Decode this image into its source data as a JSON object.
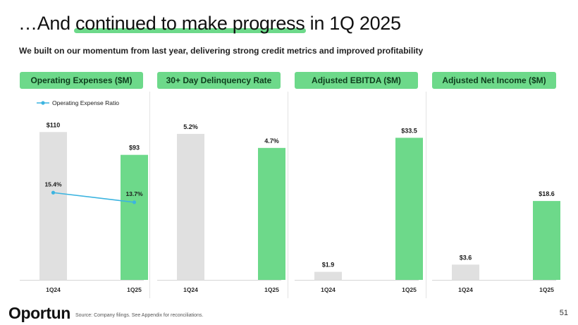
{
  "slide": {
    "title_prefix": "…And ",
    "title_highlight": "continued to make progress",
    "title_suffix": " in 1Q 2025",
    "subtitle": "We built on our momentum from last year, delivering strong credit metrics and improved profitability",
    "footer_source": "Source: Company filings. See Appendix for reconciliations.",
    "logo_text": "Oportun",
    "page_number": "51"
  },
  "colors": {
    "prior": "#e0e0e0",
    "current": "#6dd98a",
    "ratio_line": "#3cb4e0",
    "header_bg": "#6dd98a"
  },
  "chart_data": [
    {
      "type": "bar",
      "title": "Operating Expenses ($M)",
      "categories": [
        "1Q24",
        "1Q25"
      ],
      "values": [
        110,
        93
      ],
      "labels": [
        "$110",
        "$93"
      ],
      "ylim": [
        0,
        118
      ],
      "line_series": {
        "name": "Operating Expense Ratio",
        "values": [
          15.4,
          13.7
        ],
        "labels": [
          "15.4%",
          "13.7%"
        ],
        "ylim": [
          0,
          28
        ]
      }
    },
    {
      "type": "bar",
      "title": "30+ Day Delinquency Rate",
      "categories": [
        "1Q24",
        "1Q25"
      ],
      "values": [
        5.2,
        4.7
      ],
      "labels": [
        "5.2%",
        "4.7%"
      ],
      "ylim": [
        0,
        5.65
      ]
    },
    {
      "type": "bar",
      "title": "Adjusted EBITDA ($M)",
      "categories": [
        "1Q24",
        "1Q25"
      ],
      "values": [
        1.9,
        33.5
      ],
      "labels": [
        "$1.9",
        "$33.5"
      ],
      "ylim": [
        0,
        37.4
      ]
    },
    {
      "type": "bar",
      "title": "Adjusted Net Income ($M)",
      "categories": [
        "1Q24",
        "1Q25"
      ],
      "values": [
        3.6,
        18.6
      ],
      "labels": [
        "$3.6",
        "$18.6"
      ],
      "ylim": [
        0,
        37.4
      ]
    }
  ]
}
